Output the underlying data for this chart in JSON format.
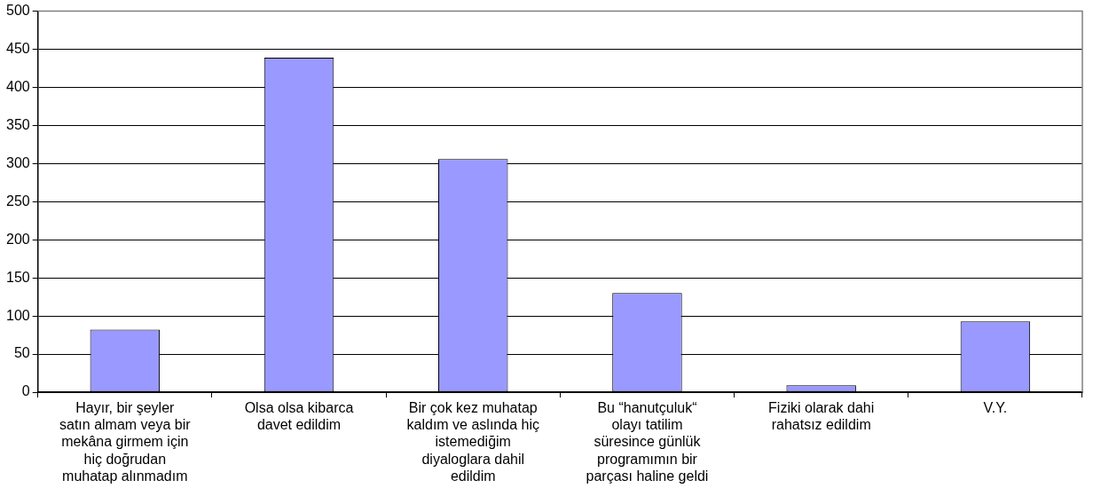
{
  "chart_data": {
    "type": "bar",
    "categories": [
      "Hayır, bir şeyler satın almam veya bir mekâna girmem için hiç doğrudan muhatap alınmadım",
      "Olsa olsa kibarca davet edildim",
      "Bir çok kez muhatap kaldım ve aslında hiç istemediğim diyaloglara dahil edildim",
      "Bu “hanutçuluk“ olayı tatilim süresince günlük programımın bir parçası haline geldi",
      "Fiziki olarak dahi rahatsız edildim",
      "V.Y."
    ],
    "values": [
      82,
      439,
      306,
      130,
      9,
      93
    ],
    "color": "#9999ff",
    "ylim": [
      0,
      500
    ],
    "yticks": [
      0,
      50,
      100,
      150,
      200,
      250,
      300,
      350,
      400,
      450,
      500
    ],
    "grid": "y"
  }
}
